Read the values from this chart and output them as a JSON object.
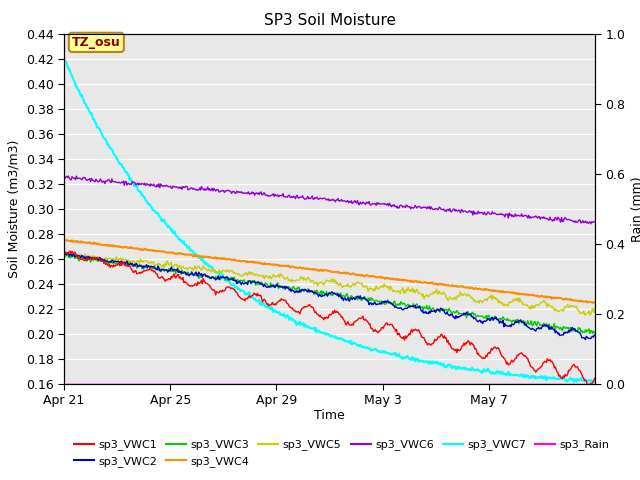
{
  "title": "SP3 Soil Moisture",
  "xlabel": "Time",
  "ylabel_left": "Soil Moisture (m3/m3)",
  "ylabel_right": "Rain (mm)",
  "ylim_left": [
    0.16,
    0.44
  ],
  "ylim_right": [
    0.0,
    1.0
  ],
  "xlim": [
    0,
    20
  ],
  "xtick_labels": [
    "Apr 21",
    "Apr 25",
    "Apr 29",
    "May 3",
    "May 7"
  ],
  "xtick_positions": [
    0,
    4,
    8,
    12,
    16
  ],
  "yticks_left": [
    0.16,
    0.18,
    0.2,
    0.22,
    0.24,
    0.26,
    0.28,
    0.3,
    0.32,
    0.34,
    0.36,
    0.38,
    0.4,
    0.42,
    0.44
  ],
  "yticks_right": [
    0.0,
    0.2,
    0.4,
    0.6,
    0.8,
    1.0
  ],
  "annotation_text": "TZ_osu",
  "annotation_color": "#8B0000",
  "annotation_bg": "#FFFF99",
  "annotation_border": "#B8860B",
  "background_color": "#E8E8E8",
  "series": {
    "sp3_VWC1": {
      "color": "#FF0000",
      "lw": 1.0
    },
    "sp3_VWC2": {
      "color": "#0000CD",
      "lw": 1.0
    },
    "sp3_VWC3": {
      "color": "#00CC00",
      "lw": 1.0
    },
    "sp3_VWC4": {
      "color": "#FF8C00",
      "lw": 1.5
    },
    "sp3_VWC5": {
      "color": "#CCCC00",
      "lw": 1.0
    },
    "sp3_VWC6": {
      "color": "#9400D3",
      "lw": 1.0
    },
    "sp3_VWC7": {
      "color": "#00FFFF",
      "lw": 1.5
    },
    "sp3_Rain": {
      "color": "#FF00FF",
      "lw": 1.0
    }
  }
}
